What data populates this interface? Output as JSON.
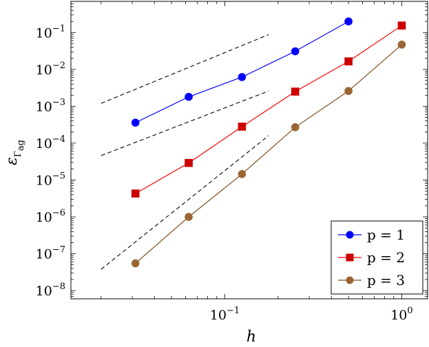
{
  "chart_data": {
    "type": "line",
    "xscale": "log",
    "yscale": "log",
    "xlabel": "h",
    "ylabel": "ε",
    "ylabel_sub": "Γ",
    "ylabel_subsub": "ag",
    "xlim": [
      0.0135,
      1.4
    ],
    "ylim": [
      6e-09,
      0.7
    ],
    "x_ticks": [
      {
        "value": 0.1,
        "base": "10",
        "exp": "−1"
      },
      {
        "value": 1,
        "base": "10",
        "exp": "0"
      }
    ],
    "y_ticks": [
      {
        "value": 1e-08,
        "base": "10",
        "exp": "−8"
      },
      {
        "value": 1e-07,
        "base": "10",
        "exp": "−7"
      },
      {
        "value": 1e-06,
        "base": "10",
        "exp": "−6"
      },
      {
        "value": 1e-05,
        "base": "10",
        "exp": "−5"
      },
      {
        "value": 0.0001,
        "base": "10",
        "exp": "−4"
      },
      {
        "value": 0.001,
        "base": "10",
        "exp": "−3"
      },
      {
        "value": 0.01,
        "base": "10",
        "exp": "−2"
      },
      {
        "value": 0.1,
        "base": "10",
        "exp": "−1"
      }
    ],
    "legend_position": "bottom-right",
    "series": [
      {
        "name": "p = 1",
        "color": "#0000ff",
        "marker": "circle",
        "x": [
          0.03125,
          0.0625,
          0.125,
          0.25,
          0.5
        ],
        "y": [
          0.00036,
          0.0018,
          0.0062,
          0.031,
          0.2
        ]
      },
      {
        "name": "p = 2",
        "color": "#ff0000",
        "marker_color": "#cc0000",
        "marker": "square",
        "x": [
          0.03125,
          0.0625,
          0.125,
          0.25,
          0.5,
          1
        ],
        "y": [
          4.3e-06,
          2.9e-05,
          0.00028,
          0.0025,
          0.0165,
          0.155
        ]
      },
      {
        "name": "p = 3",
        "color": "#7f4f20",
        "marker_color": "#996633",
        "marker": "circle",
        "x": [
          0.03125,
          0.0625,
          0.125,
          0.25,
          0.5,
          1
        ],
        "y": [
          5.5e-08,
          1e-06,
          1.45e-05,
          0.00027,
          0.0026,
          0.047
        ]
      }
    ],
    "reference_lines": [
      {
        "x": [
          0.02,
          0.177
        ],
        "y": [
          0.0012,
          0.088
        ]
      },
      {
        "x": [
          0.02,
          0.177
        ],
        "y": [
          4.6e-05,
          0.0026
        ]
      },
      {
        "x": [
          0.02,
          0.177
        ],
        "y": [
          3.8e-08,
          0.00016
        ]
      }
    ]
  }
}
